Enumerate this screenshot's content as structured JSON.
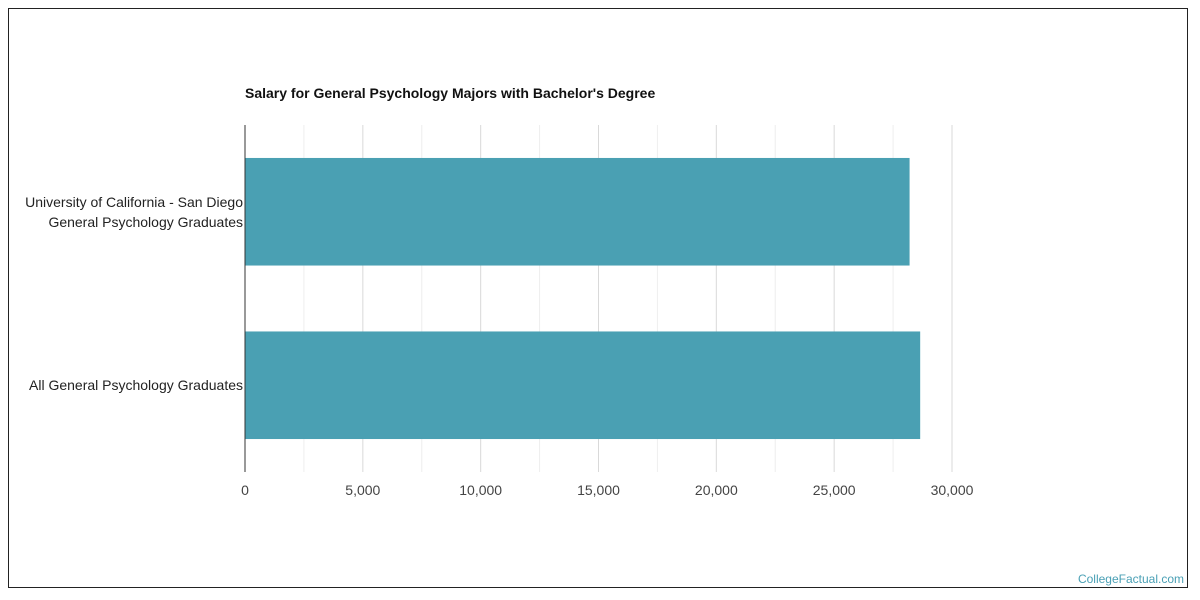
{
  "chart_data": {
    "type": "bar",
    "orientation": "horizontal",
    "title": "Salary for General Psychology Majors with Bachelor's Degree",
    "categories": [
      "University of California - San Diego General Psychology Graduates",
      "All General Psychology Graduates"
    ],
    "values": [
      28200,
      28650
    ],
    "xlim": [
      0,
      30000
    ],
    "xticks": [
      "0",
      "5,000",
      "10,000",
      "15,000",
      "20,000",
      "25,000",
      "30,000"
    ],
    "xtick_values": [
      0,
      5000,
      10000,
      15000,
      20000,
      25000,
      30000
    ],
    "grid": true,
    "bar_color": "#4aa0b3"
  },
  "watermark": "CollegeFactual.com"
}
